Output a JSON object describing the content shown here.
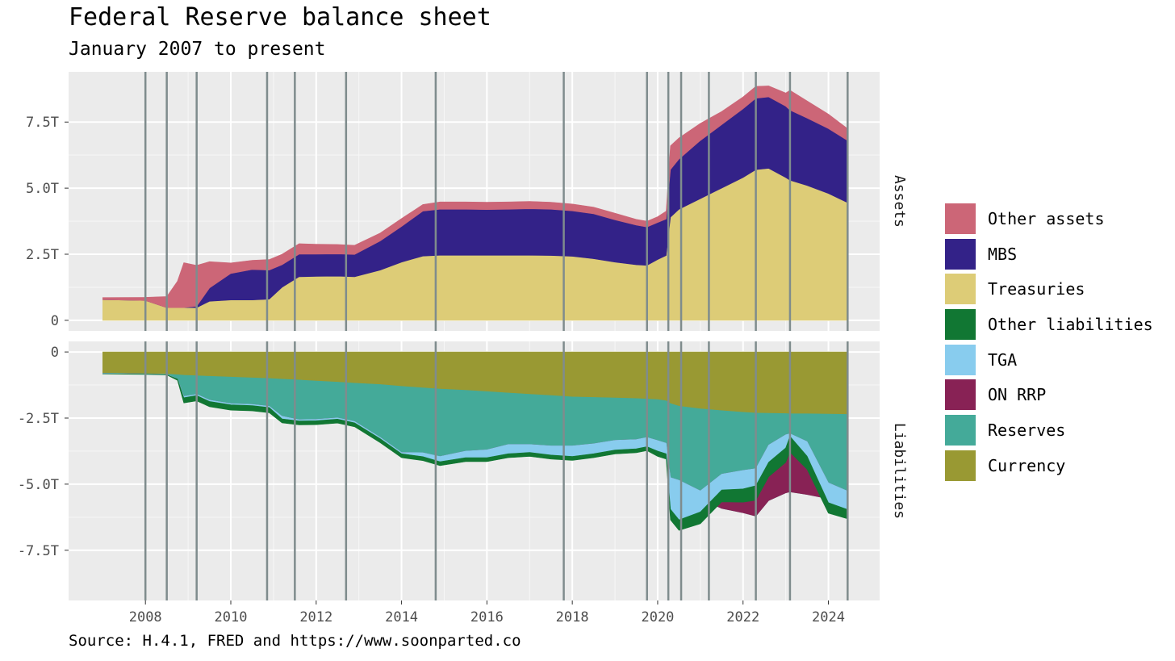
{
  "title": "Federal Reserve balance sheet",
  "subtitle": "January 2007 to present",
  "caption": "Source: H.4.1, FRED and https://www.soonparted.co",
  "chart_data": {
    "type": "area",
    "x_ticks": [
      "2008",
      "2010",
      "2012",
      "2014",
      "2016",
      "2018",
      "2020",
      "2022",
      "2024"
    ],
    "xlim": [
      2006.2,
      2025.2
    ],
    "grid": true,
    "legend_position": "right",
    "event_lines": [
      2008.0,
      2008.5,
      2009.2,
      2010.85,
      2011.5,
      2012.7,
      2014.8,
      2017.8,
      2019.75,
      2020.25,
      2020.55,
      2021.2,
      2022.3,
      2023.1,
      2024.45
    ],
    "x": [
      2007.0,
      2008.0,
      2008.5,
      2008.75,
      2008.9,
      2009.2,
      2009.5,
      2010.0,
      2010.5,
      2010.9,
      2011.2,
      2011.6,
      2012.0,
      2012.5,
      2012.9,
      2013.5,
      2014.0,
      2014.5,
      2014.9,
      2015.5,
      2016.0,
      2016.5,
      2017.0,
      2017.5,
      2018.0,
      2018.5,
      2019.0,
      2019.5,
      2019.75,
      2020.0,
      2020.2,
      2020.3,
      2020.5,
      2021.0,
      2021.5,
      2022.0,
      2022.3,
      2022.6,
      2023.0,
      2023.1,
      2023.5,
      2024.0,
      2024.45
    ],
    "panels": [
      {
        "name": "Assets",
        "y_ticks": [
          "0",
          "2.5T",
          "5.0T",
          "7.5T"
        ],
        "y_tick_values": [
          0,
          2.5,
          5.0,
          7.5
        ],
        "ylim": [
          -0.4,
          9.4
        ],
        "stack": [
          {
            "name": "Treasuries",
            "color": "#DDCC77",
            "values": [
              0.78,
              0.75,
              0.48,
              0.48,
              0.48,
              0.48,
              0.72,
              0.77,
              0.77,
              0.8,
              1.25,
              1.65,
              1.66,
              1.67,
              1.65,
              1.9,
              2.2,
              2.43,
              2.46,
              2.46,
              2.46,
              2.46,
              2.46,
              2.45,
              2.42,
              2.33,
              2.2,
              2.1,
              2.08,
              2.3,
              2.45,
              3.9,
              4.2,
              4.6,
              5.0,
              5.4,
              5.7,
              5.75,
              5.4,
              5.3,
              5.1,
              4.8,
              4.45
            ]
          },
          {
            "name": "MBS",
            "color": "#332288",
            "values": [
              0.0,
              0.0,
              0.0,
              0.0,
              0.0,
              0.05,
              0.5,
              1.0,
              1.15,
              1.1,
              0.85,
              0.85,
              0.84,
              0.84,
              0.84,
              1.1,
              1.35,
              1.7,
              1.74,
              1.74,
              1.73,
              1.74,
              1.76,
              1.75,
              1.72,
              1.7,
              1.6,
              1.5,
              1.45,
              1.4,
              1.38,
              1.8,
              1.9,
              2.2,
              2.4,
              2.6,
              2.7,
              2.7,
              2.7,
              2.65,
              2.55,
              2.45,
              2.35
            ]
          },
          {
            "name": "Other assets",
            "color": "#CC6677",
            "values": [
              0.08,
              0.12,
              0.42,
              1.0,
              1.7,
              1.55,
              1.0,
              0.4,
              0.35,
              0.4,
              0.4,
              0.4,
              0.38,
              0.36,
              0.35,
              0.3,
              0.3,
              0.25,
              0.28,
              0.28,
              0.28,
              0.28,
              0.28,
              0.27,
              0.26,
              0.25,
              0.25,
              0.22,
              0.22,
              0.22,
              0.3,
              0.9,
              0.8,
              0.65,
              0.5,
              0.45,
              0.45,
              0.42,
              0.5,
              0.75,
              0.65,
              0.55,
              0.45
            ]
          }
        ]
      },
      {
        "name": "Liabilities",
        "y_ticks": [
          "0",
          "-2.5T",
          "-5.0T",
          "-7.5T"
        ],
        "y_tick_values": [
          0,
          -2.5,
          -5.0,
          -7.5
        ],
        "ylim": [
          -9.4,
          0.4
        ],
        "stack": [
          {
            "name": "Currency",
            "color": "#999933",
            "values": [
              -0.8,
              -0.82,
              -0.84,
              -0.86,
              -0.88,
              -0.9,
              -0.92,
              -0.95,
              -0.98,
              -1.0,
              -1.03,
              -1.06,
              -1.1,
              -1.14,
              -1.18,
              -1.23,
              -1.3,
              -1.36,
              -1.4,
              -1.45,
              -1.5,
              -1.55,
              -1.6,
              -1.65,
              -1.7,
              -1.72,
              -1.74,
              -1.76,
              -1.78,
              -1.8,
              -1.85,
              -1.95,
              -2.05,
              -2.15,
              -2.22,
              -2.28,
              -2.31,
              -2.32,
              -2.33,
              -2.34,
              -2.34,
              -2.35,
              -2.36
            ]
          },
          {
            "name": "Reserves",
            "color": "#44AA99",
            "values": [
              -0.01,
              -0.01,
              -0.01,
              -0.15,
              -0.8,
              -0.7,
              -0.9,
              -1.0,
              -1.0,
              -1.05,
              -1.4,
              -1.5,
              -1.45,
              -1.35,
              -1.45,
              -2.0,
              -2.5,
              -2.65,
              -2.7,
              -2.5,
              -2.4,
              -2.25,
              -2.15,
              -2.0,
              -1.9,
              -1.75,
              -1.6,
              -1.55,
              -1.45,
              -1.55,
              -1.6,
              -2.8,
              -2.8,
              -3.4,
              -3.7,
              -3.8,
              -3.9,
              -3.3,
              -3.0,
              -2.95,
              -3.05,
              -3.2,
              -3.3
            ]
          },
          {
            "name": "ON RRP",
            "color": "#882255",
            "values": [
              0.0,
              0.0,
              0.0,
              0.0,
              0.0,
              0.0,
              0.0,
              0.0,
              0.0,
              0.0,
              0.0,
              0.0,
              0.0,
              0.0,
              0.0,
              0.0,
              0.0,
              0.2,
              0.15,
              0.2,
              0.2,
              0.3,
              0.25,
              0.1,
              0.05,
              0.0,
              0.0,
              0.0,
              0.0,
              0.0,
              0.0,
              0.0,
              0.0,
              0.3,
              1.3,
              1.6,
              1.8,
              2.1,
              2.2,
              2.2,
              2.0,
              0.6,
              0.4
            ]
          },
          {
            "name": "TGA",
            "color": "#88CCEE",
            "values": [
              -0.01,
              -0.01,
              -0.01,
              -0.01,
              -0.05,
              -0.05,
              -0.05,
              -0.05,
              -0.05,
              -0.05,
              -0.1,
              -0.05,
              -0.05,
              -0.05,
              -0.05,
              -0.05,
              -0.05,
              -0.15,
              -0.2,
              -0.25,
              -0.3,
              -0.35,
              -0.3,
              -0.35,
              -0.4,
              -0.38,
              -0.37,
              -0.35,
              -0.35,
              -0.4,
              -0.4,
              -1.2,
              -1.5,
              -0.8,
              -0.6,
              -0.7,
              -0.65,
              -0.65,
              -0.5,
              -0.1,
              -0.55,
              -0.75,
              -0.7
            ]
          },
          {
            "name": "Other liabilities",
            "color": "#117733",
            "values": [
              -0.01,
              -0.01,
              -0.01,
              -0.05,
              -0.2,
              -0.2,
              -0.2,
              -0.2,
              -0.2,
              -0.2,
              -0.15,
              -0.15,
              -0.15,
              -0.15,
              -0.15,
              -0.15,
              -0.15,
              -0.15,
              -0.15,
              -0.15,
              -0.15,
              -0.15,
              -0.15,
              -0.15,
              -0.15,
              -0.15,
              -0.15,
              -0.15,
              -0.15,
              -0.2,
              -0.2,
              -0.4,
              -0.4,
              -0.45,
              -0.45,
              -0.5,
              -0.55,
              -0.55,
              -0.55,
              -0.6,
              -0.5,
              -0.4,
              -0.35
            ]
          }
        ]
      }
    ],
    "legend": [
      {
        "name": "Other assets",
        "color": "#CC6677"
      },
      {
        "name": "MBS",
        "color": "#332288"
      },
      {
        "name": "Treasuries",
        "color": "#DDCC77"
      },
      {
        "name": "Other liabilities",
        "color": "#117733"
      },
      {
        "name": "TGA",
        "color": "#88CCEE"
      },
      {
        "name": "ON RRP",
        "color": "#882255"
      },
      {
        "name": "Reserves",
        "color": "#44AA99"
      },
      {
        "name": "Currency",
        "color": "#999933"
      }
    ]
  }
}
